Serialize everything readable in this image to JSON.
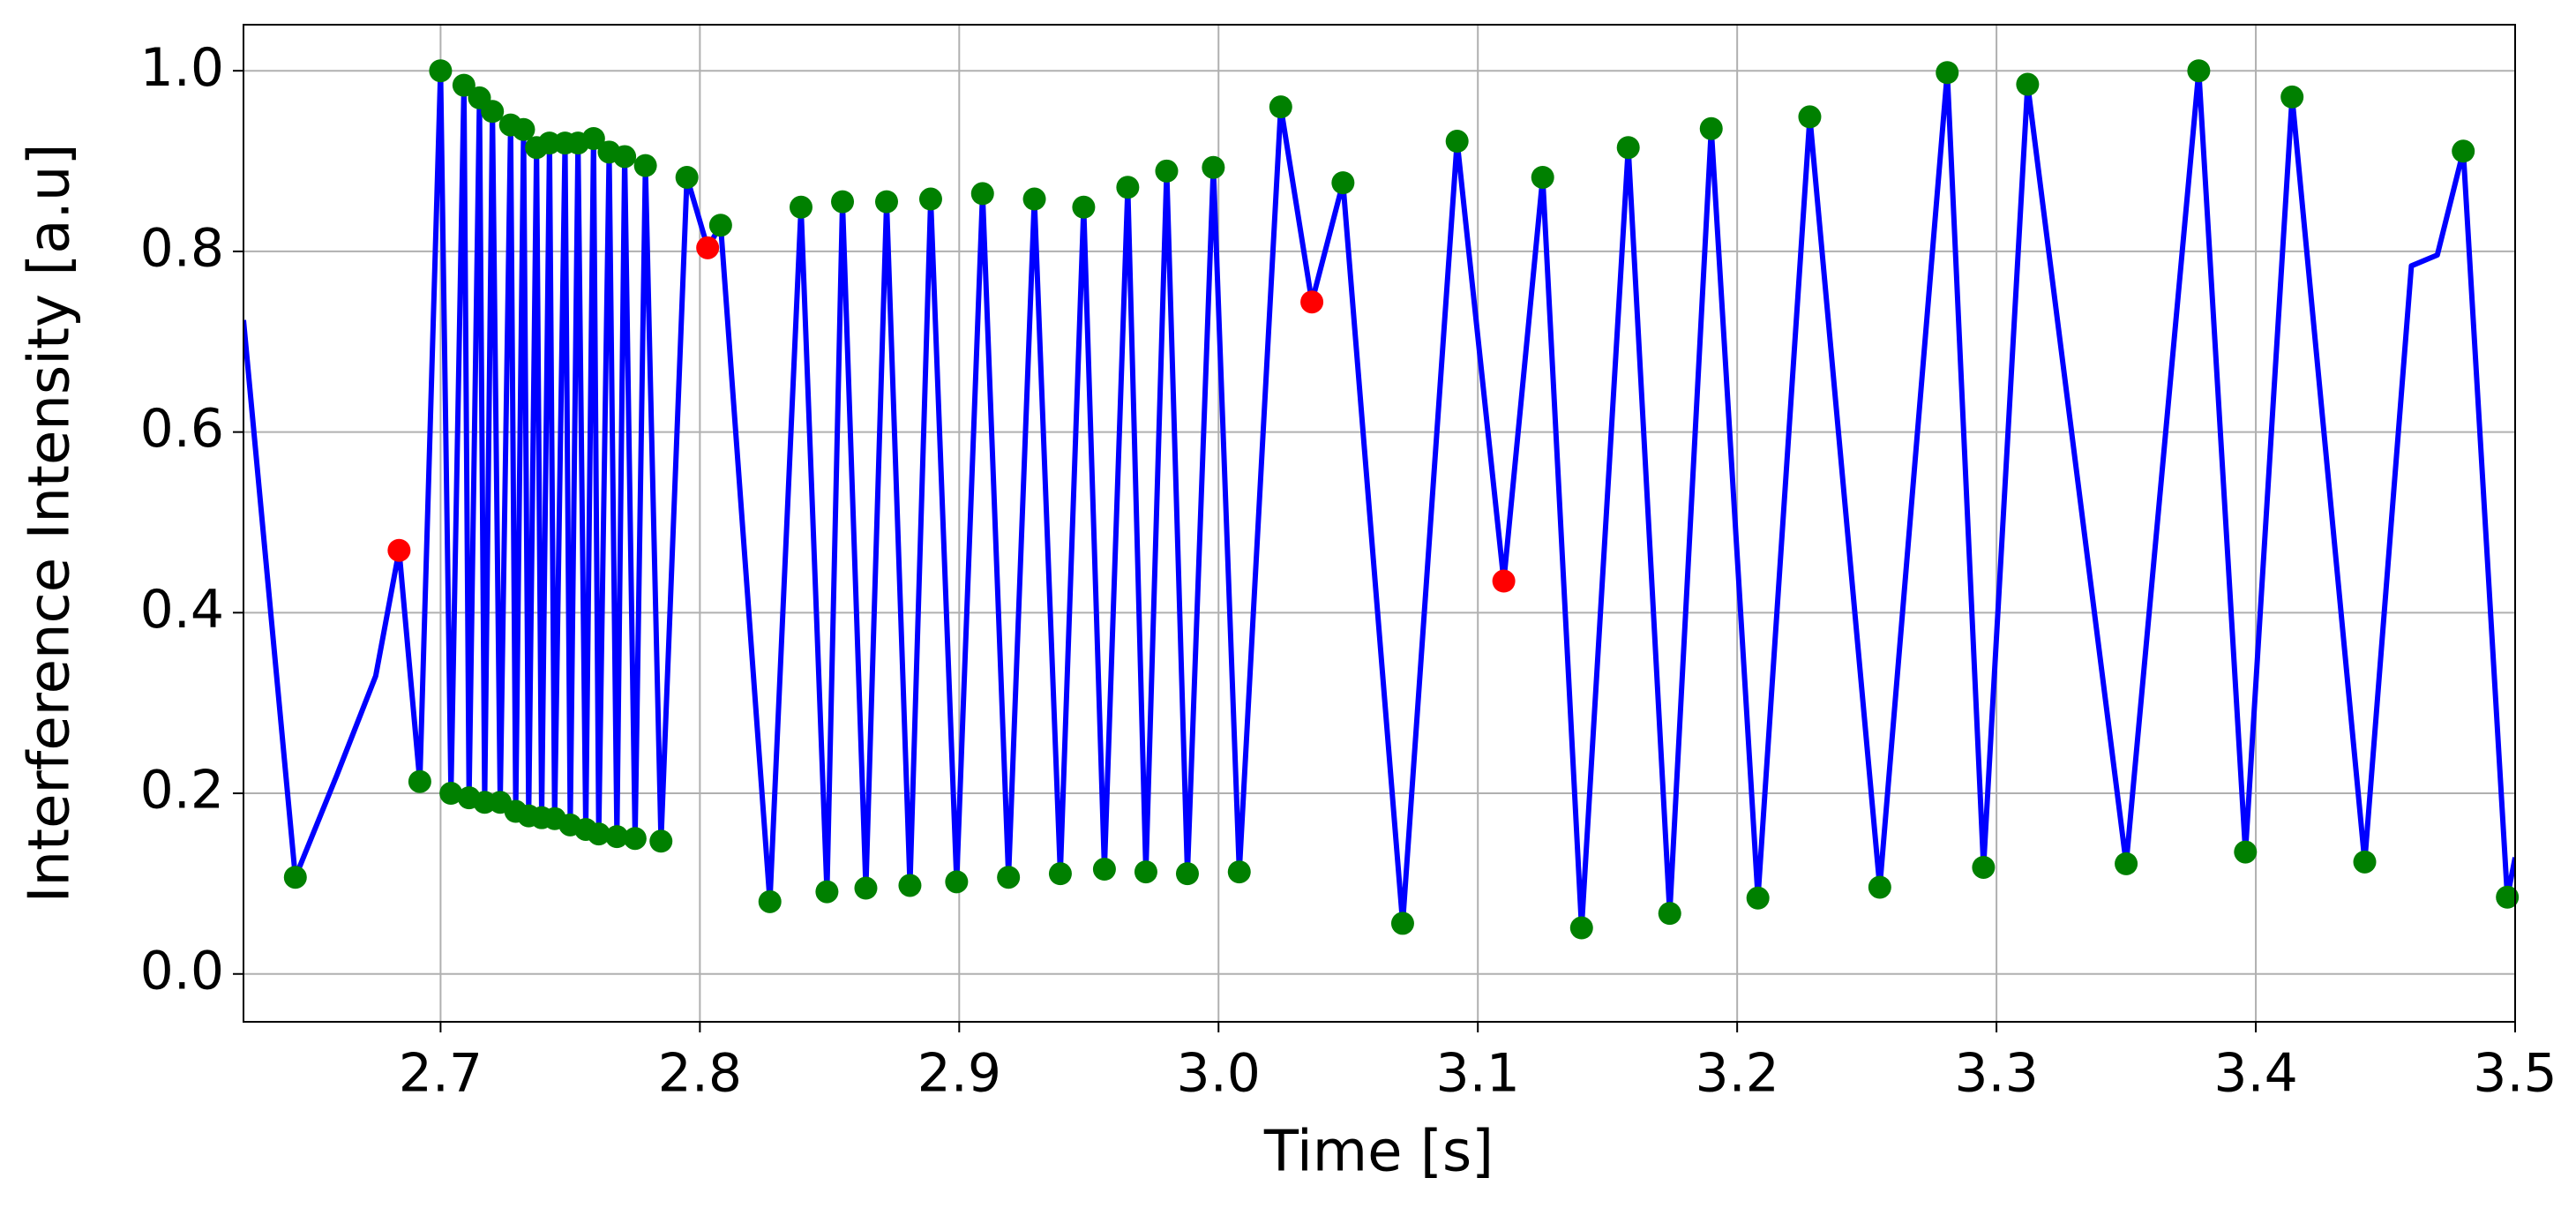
{
  "chart_data": {
    "type": "line",
    "xlabel": "Time [s]",
    "ylabel": "Interference Intensity [a.u]",
    "xlim": [
      2.624,
      3.5
    ],
    "ylim": [
      -0.053,
      1.051
    ],
    "xticks": [
      2.7,
      2.8,
      2.9,
      {
        "value": 3.0,
        "label": "3.0"
      },
      3.1,
      3.2,
      3.3,
      3.4,
      3.5
    ],
    "yticks": [
      {
        "value": 0,
        "label": "0.0"
      },
      0.2,
      0.4,
      0.6,
      0.8,
      {
        "value": 1,
        "label": "1.0"
      }
    ],
    "grid": true,
    "series": [
      {
        "style": "line",
        "color": "#0000ff",
        "x": [
          2.624,
          2.644,
          2.66,
          2.675,
          2.684,
          2.692,
          2.7,
          2.704,
          2.709,
          2.711,
          2.715,
          2.717,
          2.72,
          2.723,
          2.727,
          2.729,
          2.732,
          2.734,
          2.737,
          2.739,
          2.742,
          2.744,
          2.748,
          2.75,
          2.753,
          2.756,
          2.759,
          2.761,
          2.765,
          2.768,
          2.771,
          2.775,
          2.779,
          2.785,
          2.795,
          2.803,
          2.808,
          2.827,
          2.839,
          2.849,
          2.855,
          2.864,
          2.872,
          2.881,
          2.889,
          2.899,
          2.909,
          2.919,
          2.929,
          2.939,
          2.948,
          2.956,
          2.965,
          2.972,
          2.98,
          2.988,
          2.998,
          3.008,
          3.024,
          3.036,
          3.048,
          3.071,
          3.092,
          3.11,
          3.125,
          3.14,
          3.158,
          3.174,
          3.19,
          3.208,
          3.228,
          3.255,
          3.281,
          3.295,
          3.312,
          3.35,
          3.378,
          3.396,
          3.414,
          3.442,
          3.46,
          3.47,
          3.48,
          3.497,
          3.5
        ],
        "values": [
          0.724,
          0.107,
          0.22,
          0.33,
          0.469,
          0.213,
          1.0,
          0.2,
          0.984,
          0.195,
          0.97,
          0.19,
          0.955,
          0.19,
          0.94,
          0.18,
          0.935,
          0.175,
          0.915,
          0.173,
          0.92,
          0.172,
          0.92,
          0.165,
          0.92,
          0.16,
          0.925,
          0.155,
          0.91,
          0.152,
          0.905,
          0.15,
          0.895,
          0.147,
          0.882,
          0.804,
          0.829,
          0.08,
          0.849,
          0.091,
          0.855,
          0.095,
          0.855,
          0.098,
          0.858,
          0.102,
          0.864,
          0.107,
          0.858,
          0.111,
          0.849,
          0.116,
          0.871,
          0.113,
          0.889,
          0.111,
          0.893,
          0.113,
          0.96,
          0.744,
          0.876,
          0.056,
          0.922,
          0.435,
          0.882,
          0.051,
          0.915,
          0.067,
          0.936,
          0.084,
          0.949,
          0.096,
          0.998,
          0.118,
          0.985,
          0.122,
          1.0,
          0.135,
          0.971,
          0.124,
          0.784,
          0.796,
          0.911,
          0.085,
          0.129
        ]
      },
      {
        "style": "markers",
        "color": "#008000",
        "x": [
          2.644,
          2.692,
          2.7,
          2.704,
          2.709,
          2.711,
          2.715,
          2.717,
          2.72,
          2.723,
          2.727,
          2.729,
          2.732,
          2.734,
          2.737,
          2.739,
          2.742,
          2.744,
          2.748,
          2.75,
          2.753,
          2.756,
          2.759,
          2.761,
          2.765,
          2.768,
          2.771,
          2.775,
          2.779,
          2.785,
          2.795,
          2.808,
          2.827,
          2.839,
          2.849,
          2.855,
          2.864,
          2.872,
          2.881,
          2.889,
          2.899,
          2.909,
          2.919,
          2.929,
          2.939,
          2.948,
          2.956,
          2.965,
          2.972,
          2.98,
          2.988,
          2.998,
          3.008,
          3.024,
          3.048,
          3.071,
          3.092,
          3.125,
          3.14,
          3.158,
          3.174,
          3.19,
          3.208,
          3.228,
          3.255,
          3.281,
          3.295,
          3.312,
          3.35,
          3.378,
          3.396,
          3.414,
          3.442,
          3.48,
          3.497
        ],
        "values": [
          0.107,
          0.213,
          1.0,
          0.2,
          0.984,
          0.195,
          0.97,
          0.19,
          0.955,
          0.19,
          0.94,
          0.18,
          0.935,
          0.175,
          0.915,
          0.173,
          0.92,
          0.172,
          0.92,
          0.165,
          0.92,
          0.16,
          0.925,
          0.155,
          0.91,
          0.152,
          0.905,
          0.15,
          0.895,
          0.147,
          0.882,
          0.829,
          0.08,
          0.849,
          0.091,
          0.855,
          0.095,
          0.855,
          0.098,
          0.858,
          0.102,
          0.864,
          0.107,
          0.858,
          0.111,
          0.849,
          0.116,
          0.871,
          0.113,
          0.889,
          0.111,
          0.893,
          0.113,
          0.96,
          0.876,
          0.056,
          0.922,
          0.882,
          0.051,
          0.915,
          0.067,
          0.936,
          0.084,
          0.949,
          0.096,
          0.998,
          0.118,
          0.985,
          0.122,
          1.0,
          0.135,
          0.971,
          0.124,
          0.911,
          0.085
        ]
      },
      {
        "style": "markers",
        "color": "#ff0000",
        "x": [
          2.684,
          2.803,
          3.036,
          3.11
        ],
        "values": [
          0.469,
          0.804,
          0.744,
          0.435
        ]
      }
    ]
  }
}
